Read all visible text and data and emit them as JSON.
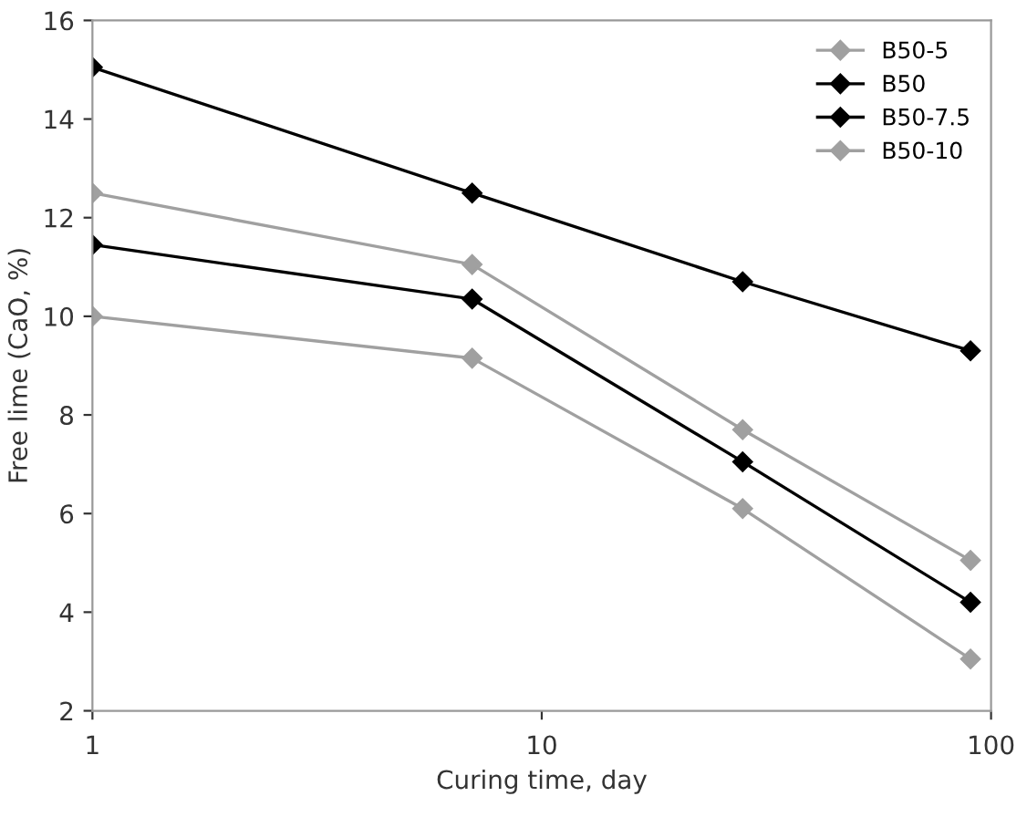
{
  "chart_data": {
    "type": "line",
    "xlabel": "Curing time, day",
    "ylabel": "Free lime (CaO, %)",
    "x": [
      1,
      7,
      28,
      90
    ],
    "series": [
      {
        "name": "B50-5",
        "color": "#a0a0a0",
        "values": [
          12.5,
          11.05,
          7.7,
          5.05
        ]
      },
      {
        "name": "B50",
        "color": "#000000",
        "values": [
          15.05,
          12.5,
          10.7,
          9.3
        ]
      },
      {
        "name": "B50-7.5",
        "color": "#000000",
        "values": [
          11.45,
          10.35,
          7.05,
          4.2
        ]
      },
      {
        "name": "B50-10",
        "color": "#a0a0a0",
        "values": [
          10.0,
          9.15,
          6.1,
          3.05
        ]
      }
    ],
    "log": "x",
    "xlim": [
      1,
      100
    ],
    "xticks": [
      1,
      10,
      100
    ],
    "ylim": [
      2,
      16
    ],
    "yticks": [
      2,
      4,
      6,
      8,
      10,
      12,
      14,
      16
    ],
    "grid": false,
    "legend": "top right",
    "marker": "diamond",
    "line_style": "solid"
  }
}
